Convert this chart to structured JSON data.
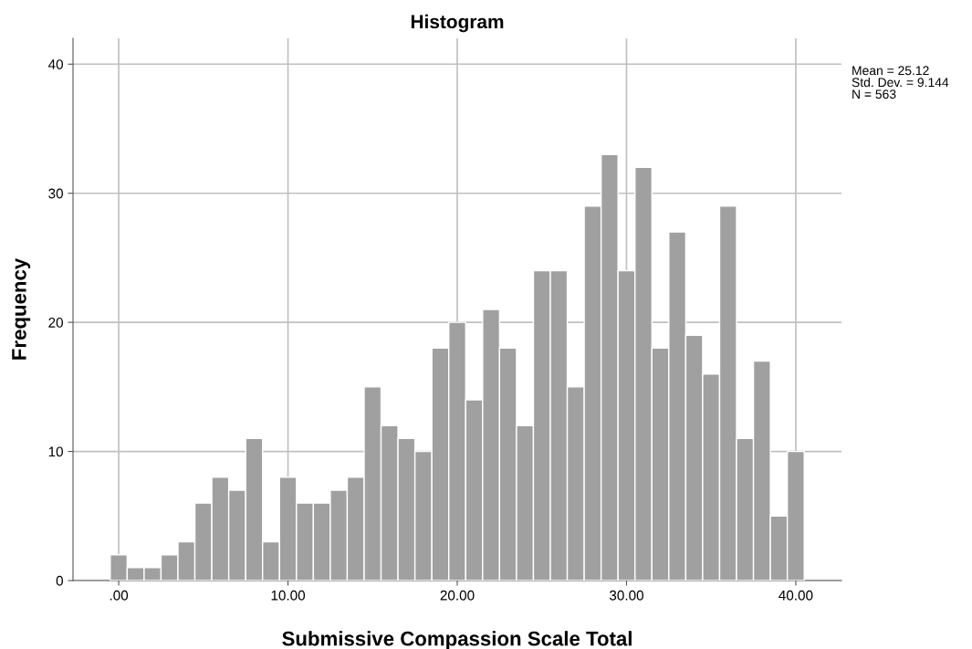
{
  "chart_data": {
    "type": "histogram",
    "title": "Histogram",
    "xlabel": "Submissive Compassion Scale Total",
    "ylabel": "Frequency",
    "bins": [
      -0.5,
      0.5,
      1.5,
      2.5,
      3.5,
      4.5,
      5.5,
      6.5,
      7.5,
      8.5,
      9.5,
      10.5,
      11.5,
      12.5,
      13.5,
      14.5,
      15.5,
      16.5,
      17.5,
      18.5,
      19.5,
      20.5,
      21.5,
      22.5,
      23.5,
      24.5,
      25.5,
      26.5,
      27.5,
      28.5,
      29.5,
      30.5,
      31.5,
      32.5,
      33.5,
      34.5,
      35.5,
      36.5,
      37.5,
      38.5,
      39.5,
      40.5
    ],
    "values": [
      2,
      1,
      1,
      2,
      3,
      6,
      8,
      7,
      11,
      3,
      8,
      6,
      6,
      7,
      8,
      15,
      12,
      11,
      10,
      18,
      20,
      14,
      21,
      18,
      12,
      24,
      24,
      15,
      29,
      33,
      24,
      32,
      18,
      27,
      19,
      16,
      29,
      11,
      17,
      5,
      10
    ],
    "color": "#a0a0a0",
    "xlim": [
      -2.7,
      42.7
    ],
    "xticks": [
      {
        "value": 0,
        "label": ".00"
      },
      {
        "value": 10,
        "label": "10.00"
      },
      {
        "value": 20,
        "label": "20.00"
      },
      {
        "value": 30,
        "label": "30.00"
      },
      {
        "value": 40,
        "label": "40.00"
      }
    ],
    "ylim": [
      0,
      42
    ],
    "yticks": [
      0,
      10,
      20,
      30,
      40
    ],
    "grid": true,
    "annotations": [
      "Mean = 25.12\nStd. Dev. = 9.144\nN = 563"
    ]
  }
}
